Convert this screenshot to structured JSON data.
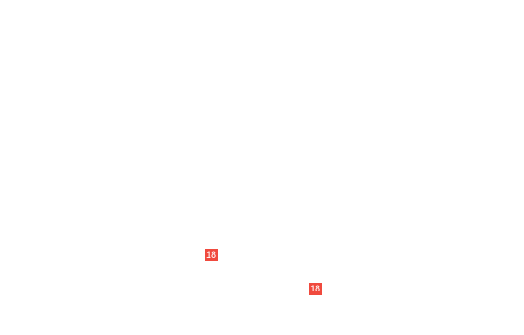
{
  "badges": [
    {
      "label": "18"
    },
    {
      "label": "18"
    }
  ],
  "colors": {
    "badge": "#f04a3e",
    "background": "#ffffff"
  }
}
